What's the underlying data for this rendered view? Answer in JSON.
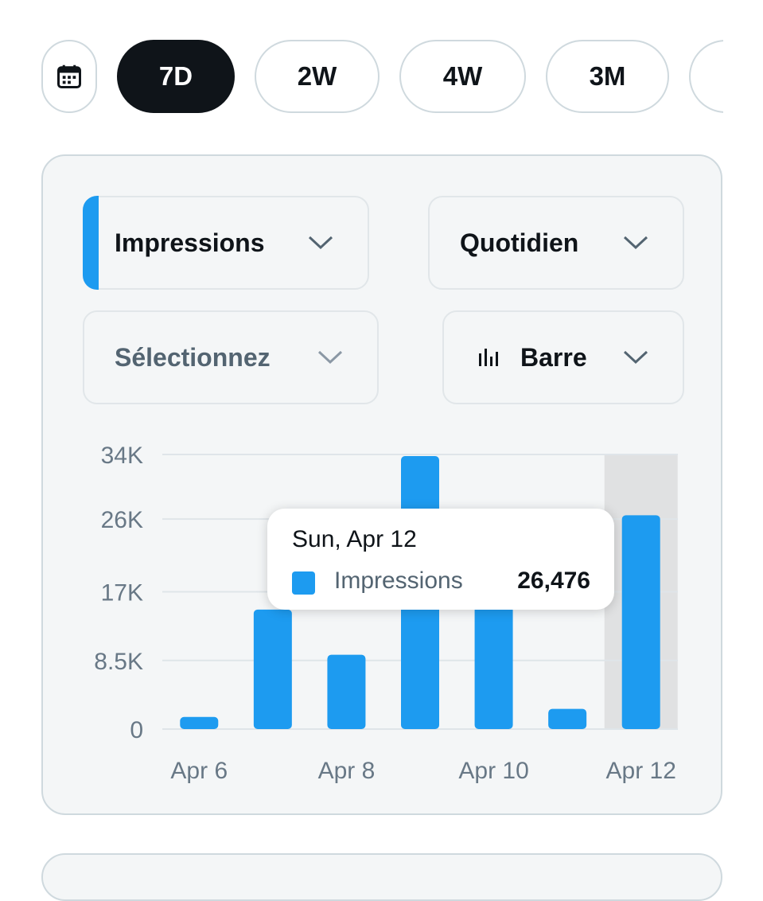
{
  "range_selector": {
    "calendar_icon": "calendar-icon",
    "options": [
      {
        "label": "7D",
        "active": true
      },
      {
        "label": "2W",
        "active": false
      },
      {
        "label": "4W",
        "active": false
      },
      {
        "label": "3M",
        "active": false
      }
    ]
  },
  "controls": {
    "metric": "Impressions",
    "interval": "Quotidien",
    "compare": "Sélectionnez",
    "chart_type": "Barre",
    "chart_type_icon": "bar-chart-icon",
    "accent_color": "#1d9bf0"
  },
  "tooltip": {
    "date": "Sun, Apr 12",
    "series": "Impressions",
    "value": "26,476"
  },
  "chart_data": {
    "type": "bar",
    "series": [
      {
        "name": "Impressions",
        "color": "#1d9bf0",
        "values": [
          1500,
          14800,
          9200,
          33800,
          22000,
          2500,
          26476
        ]
      }
    ],
    "categories": [
      "Apr 6",
      "Apr 7",
      "Apr 8",
      "Apr 9",
      "Apr 10",
      "Apr 11",
      "Apr 12"
    ],
    "x_tick_labels": [
      "Apr 6",
      "Apr 8",
      "Apr 10",
      "Apr 12"
    ],
    "y_ticks": [
      0,
      8500,
      17000,
      26000,
      34000
    ],
    "y_tick_labels": [
      "0",
      "8.5K",
      "17K",
      "26K",
      "34K"
    ],
    "ylim": [
      0,
      34000
    ],
    "highlighted_category": "Apr 12",
    "grid": true
  }
}
